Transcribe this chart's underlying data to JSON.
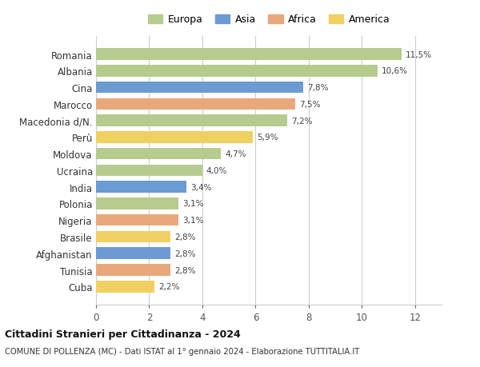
{
  "categories": [
    "Romania",
    "Albania",
    "Cina",
    "Marocco",
    "Macedonia d/N.",
    "Perù",
    "Moldova",
    "Ucraina",
    "India",
    "Polonia",
    "Nigeria",
    "Brasile",
    "Afghanistan",
    "Tunisia",
    "Cuba"
  ],
  "values": [
    11.5,
    10.6,
    7.8,
    7.5,
    7.2,
    5.9,
    4.7,
    4.0,
    3.4,
    3.1,
    3.1,
    2.8,
    2.8,
    2.8,
    2.2
  ],
  "labels": [
    "11,5%",
    "10,6%",
    "7,8%",
    "7,5%",
    "7,2%",
    "5,9%",
    "4,7%",
    "4,0%",
    "3,4%",
    "3,1%",
    "3,1%",
    "2,8%",
    "2,8%",
    "2,8%",
    "2,2%"
  ],
  "colors": [
    "#b5cc8e",
    "#b5cc8e",
    "#6b9bd2",
    "#e8a87c",
    "#b5cc8e",
    "#f0d060",
    "#b5cc8e",
    "#b5cc8e",
    "#6b9bd2",
    "#b5cc8e",
    "#e8a87c",
    "#f0d060",
    "#6b9bd2",
    "#e8a87c",
    "#f0d060"
  ],
  "legend_labels": [
    "Europa",
    "Asia",
    "Africa",
    "America"
  ],
  "legend_colors": [
    "#b5cc8e",
    "#6b9bd2",
    "#e8a87c",
    "#f0d060"
  ],
  "title_bold": "Cittadini Stranieri per Cittadinanza - 2024",
  "subtitle": "COMUNE DI POLLENZA (MC) - Dati ISTAT al 1° gennaio 2024 - Elaborazione TUTTITALIA.IT",
  "xlim": [
    0,
    13.0
  ],
  "xticks": [
    0,
    2,
    4,
    6,
    8,
    10,
    12
  ],
  "background_color": "#ffffff",
  "grid_color": "#cccccc",
  "bar_height": 0.7
}
